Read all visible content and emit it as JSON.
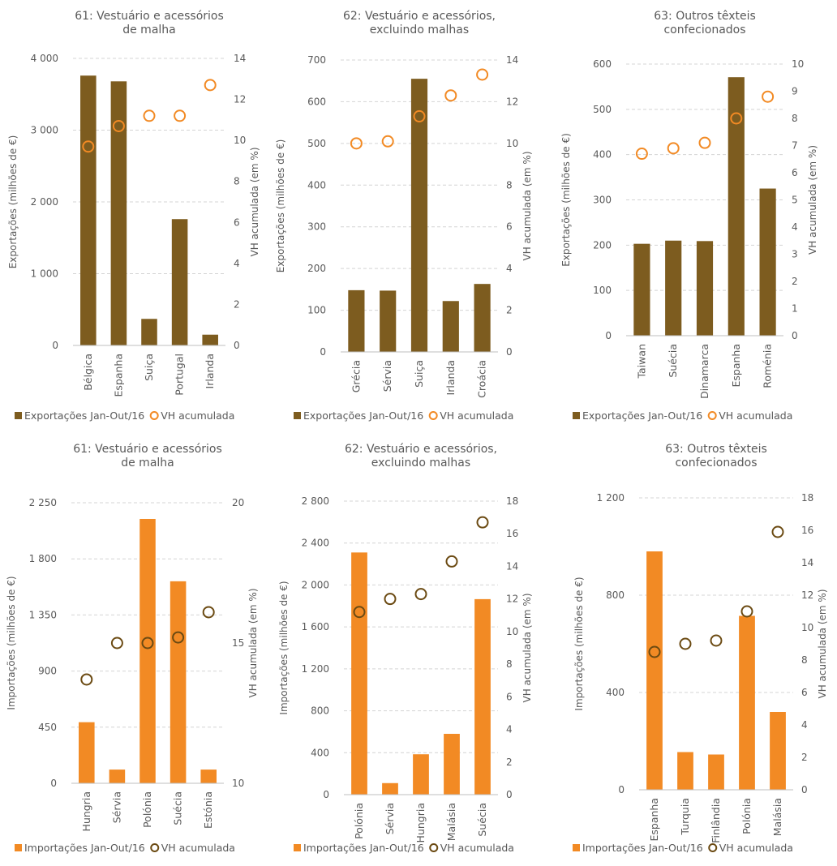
{
  "colors": {
    "export_bar": "#7d5c1f",
    "export_marker": "#f28a24",
    "import_bar": "#f28a24",
    "import_marker": "#6b4a12",
    "grid": "#d4d4d4",
    "text": "#595959"
  },
  "chart_data": [
    {
      "type": "bar",
      "title": [
        "61: Vestuário e acessórios",
        "de malha"
      ],
      "categories": [
        "Bélgica",
        "Espanha",
        "Suiça",
        "Portugal",
        "Irlanda"
      ],
      "series": [
        {
          "name": "Exportações Jan-Out/16",
          "kind": "bar",
          "axis": "left",
          "values": [
            3760,
            3680,
            370,
            1760,
            150
          ]
        },
        {
          "name": "VH acumulada",
          "kind": "marker",
          "axis": "right",
          "values": [
            9.7,
            10.7,
            11.2,
            11.2,
            12.7
          ]
        }
      ],
      "ylabel": "Exportações (milhões de €)",
      "y2label": "VH acumulada (em  %)",
      "ylim": [
        0,
        4000
      ],
      "yticks": [
        0,
        1000,
        2000,
        3000,
        4000
      ],
      "yticklabels": [
        "0",
        "1 000",
        "2 000",
        "3 000",
        "4 000"
      ],
      "y2lim": [
        0,
        14
      ],
      "y2ticks": [
        0,
        2,
        4,
        6,
        8,
        10,
        12,
        14
      ],
      "y2ticklabels": [
        "0",
        "2",
        "4",
        "6",
        "8",
        "10",
        "12",
        "14"
      ],
      "grid": true,
      "legend": "bottom"
    },
    {
      "type": "bar",
      "title": [
        "62: Vestuário e acessórios,",
        "excluindo malhas"
      ],
      "categories": [
        "Grécia",
        "Sérvia",
        "Suiça",
        "Irlanda",
        "Croácia"
      ],
      "series": [
        {
          "name": "Exportações Jan-Out/16",
          "kind": "bar",
          "axis": "left",
          "values": [
            148,
            147,
            655,
            122,
            163
          ]
        },
        {
          "name": "VH acumulada",
          "kind": "marker",
          "axis": "right",
          "values": [
            10.0,
            10.1,
            11.3,
            12.3,
            13.3
          ]
        }
      ],
      "ylabel": "Exportações (milhões de €)",
      "y2label": "VH acumulada (em  %)",
      "ylim": [
        0,
        700
      ],
      "yticks": [
        0,
        100,
        200,
        300,
        400,
        500,
        600,
        700
      ],
      "yticklabels": [
        "0",
        "100",
        "200",
        "300",
        "400",
        "500",
        "600",
        "700"
      ],
      "y2lim": [
        0,
        14
      ],
      "y2ticks": [
        0,
        2,
        4,
        6,
        8,
        10,
        12,
        14
      ],
      "y2ticklabels": [
        "0",
        "2",
        "4",
        "6",
        "8",
        "10",
        "12",
        "14"
      ],
      "grid": true,
      "legend": "bottom"
    },
    {
      "type": "bar",
      "title": [
        "63: Outros têxteis",
        "confecionados"
      ],
      "categories": [
        "Taiwan",
        "Suécia",
        "Dinamarca",
        "Espanha",
        "Roménia"
      ],
      "series": [
        {
          "name": "Exportações Jan-Out/16",
          "kind": "bar",
          "axis": "left",
          "values": [
            203,
            210,
            209,
            571,
            325
          ]
        },
        {
          "name": "VH acumulada",
          "kind": "marker",
          "axis": "right",
          "values": [
            6.7,
            6.9,
            7.1,
            8.0,
            8.8
          ]
        }
      ],
      "ylabel": "Exportações (milhões de €)",
      "y2label": "VH acumulada (em  %)",
      "ylim": [
        0,
        600
      ],
      "yticks": [
        0,
        100,
        200,
        300,
        400,
        500,
        600
      ],
      "yticklabels": [
        "0",
        "100",
        "200",
        "300",
        "400",
        "500",
        "600"
      ],
      "y2lim": [
        0,
        10
      ],
      "y2ticks": [
        0,
        1,
        2,
        3,
        4,
        5,
        6,
        7,
        8,
        9,
        10
      ],
      "y2ticklabels": [
        "0",
        "1",
        "2",
        "3",
        "4",
        "5",
        "6",
        "7",
        "8",
        "9",
        "10"
      ],
      "grid": true,
      "legend": "bottom"
    },
    {
      "type": "bar",
      "title": [
        "61: Vestuário e acessórios",
        "de malha"
      ],
      "categories": [
        "Hungria",
        "Sérvia",
        "Polónia",
        "Suécia",
        "Estónia"
      ],
      "series": [
        {
          "name": "Importações Jan-Out/16",
          "kind": "bar",
          "axis": "left",
          "values": [
            490,
            110,
            2120,
            1620,
            110
          ]
        },
        {
          "name": "VH acumulada",
          "kind": "marker",
          "axis": "right",
          "values": [
            13.7,
            15.0,
            15.0,
            15.2,
            16.1
          ]
        }
      ],
      "ylabel": "Importações (milhões de €)",
      "y2label": "VH acumulada (em %)",
      "ylim": [
        0,
        2250
      ],
      "yticks": [
        0,
        450,
        900,
        1350,
        1800,
        2250
      ],
      "yticklabels": [
        "0",
        "450",
        "900",
        "1 350",
        "1 800",
        "2 250"
      ],
      "y2lim": [
        10,
        20
      ],
      "y2ticks": [
        10,
        15,
        20
      ],
      "y2ticklabels": [
        "10",
        "15",
        "20"
      ],
      "grid": true,
      "legend": "bottom"
    },
    {
      "type": "bar",
      "title": [
        "62: Vestuário e acessórios,",
        "excluindo malhas"
      ],
      "categories": [
        "Polónia",
        "Sérvia",
        "Hungria",
        "Malásia",
        "Suécia"
      ],
      "series": [
        {
          "name": "Importações Jan-Out/16",
          "kind": "bar",
          "axis": "left",
          "values": [
            2310,
            110,
            385,
            580,
            1865
          ]
        },
        {
          "name": "VH acumulada",
          "kind": "marker",
          "axis": "right",
          "values": [
            11.2,
            12.0,
            12.3,
            14.3,
            16.7
          ]
        }
      ],
      "ylabel": "Importações (milhões de €)",
      "y2label": "VH acumulada (em  %)",
      "ylim": [
        0,
        2800
      ],
      "yticks": [
        0,
        400,
        800,
        1200,
        1600,
        2000,
        2400,
        2800
      ],
      "yticklabels": [
        "0",
        "400",
        "800",
        "1 200",
        "1 600",
        "2 000",
        "2 400",
        "2 800"
      ],
      "y2lim": [
        0,
        18
      ],
      "y2ticks": [
        0,
        2,
        4,
        6,
        8,
        10,
        12,
        14,
        16,
        18
      ],
      "y2ticklabels": [
        "0",
        "2",
        "4",
        "6",
        "8",
        "10",
        "12",
        "14",
        "16",
        "18"
      ],
      "grid": true,
      "legend": "bottom"
    },
    {
      "type": "bar",
      "title": [
        "63: Outros têxteis",
        "confecionados"
      ],
      "categories": [
        "Espanha",
        "Turquia",
        "Finlândia",
        "Polónia",
        "Malásia"
      ],
      "series": [
        {
          "name": "Importações Jan-Out/16",
          "kind": "bar",
          "axis": "left",
          "values": [
            980,
            155,
            145,
            715,
            320
          ]
        },
        {
          "name": "VH acumulada",
          "kind": "marker",
          "axis": "right",
          "values": [
            8.5,
            9.0,
            9.2,
            11.0,
            15.9
          ]
        }
      ],
      "ylabel": "Importações (milhões de €)",
      "y2label": "VH acumulada (em  %)",
      "ylim": [
        0,
        1200
      ],
      "yticks": [
        0,
        400,
        800,
        1200
      ],
      "yticklabels": [
        "0",
        "400",
        "800",
        "1 200"
      ],
      "y2lim": [
        0,
        18
      ],
      "y2ticks": [
        0,
        2,
        4,
        6,
        8,
        10,
        12,
        14,
        16,
        18
      ],
      "y2ticklabels": [
        "0",
        "2",
        "4",
        "6",
        "8",
        "10",
        "12",
        "14",
        "16",
        "18"
      ],
      "grid": true,
      "legend": "bottom"
    }
  ]
}
